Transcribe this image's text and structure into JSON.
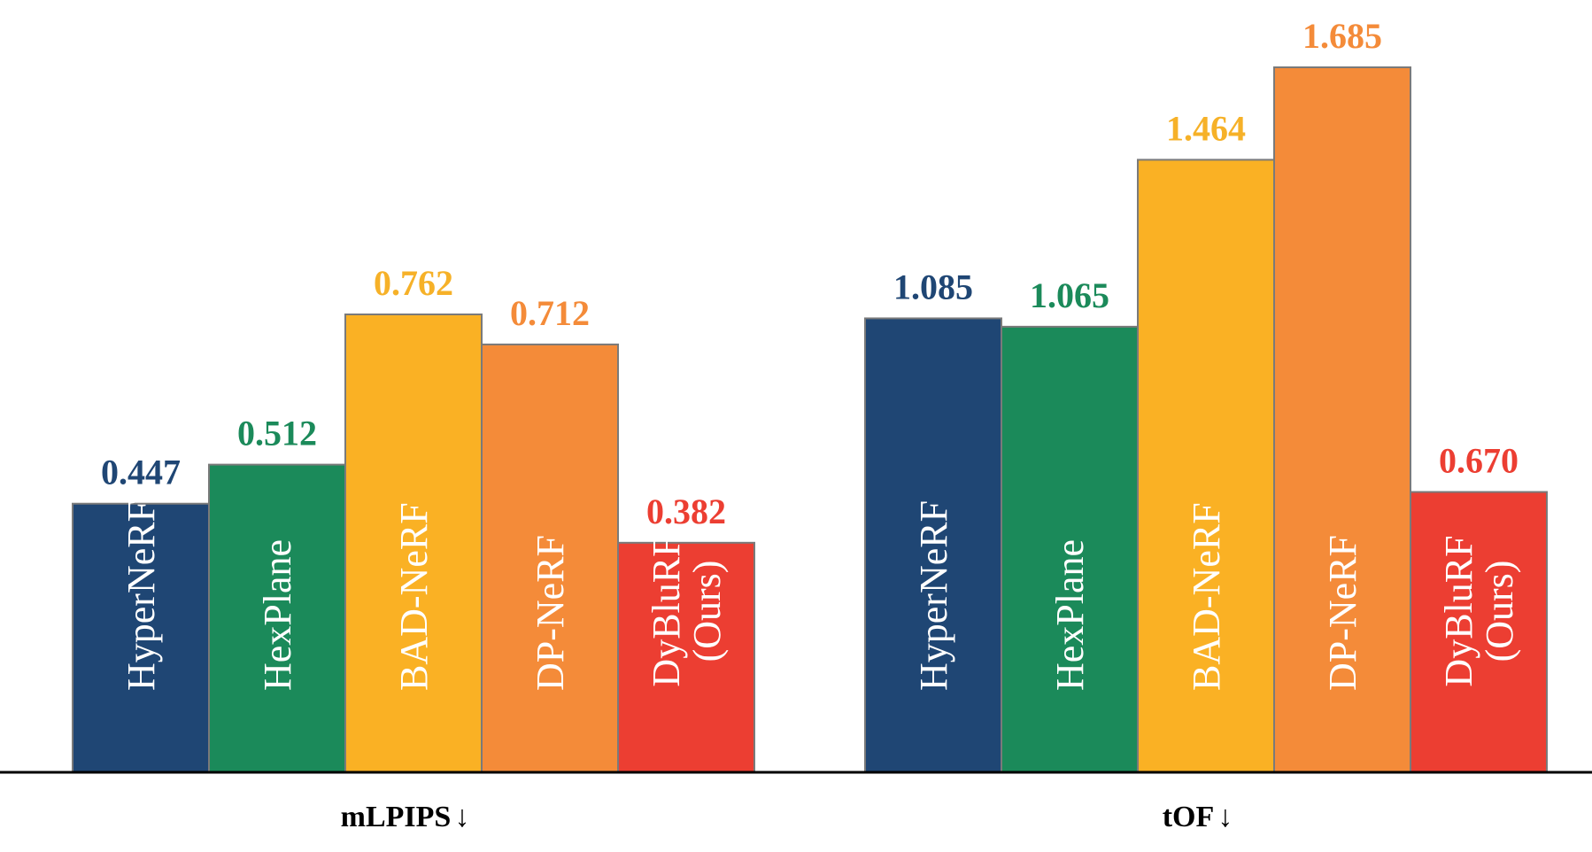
{
  "chart_data": {
    "type": "bar",
    "groups": [
      {
        "label": "mLPIPS",
        "arrow": "↓",
        "bars": [
          {
            "name": "HyperNeRF",
            "value": 0.447,
            "display": "0.447",
            "color": "#1f4674",
            "text_color": "#1f4674"
          },
          {
            "name": "HexPlane",
            "value": 0.512,
            "display": "0.512",
            "color": "#1b8a5a",
            "text_color": "#1b8a5a"
          },
          {
            "name": "BAD-NeRF",
            "value": 0.762,
            "display": "0.762",
            "color": "#fab124",
            "text_color": "#f6b128"
          },
          {
            "name": "DP-NeRF",
            "value": 0.712,
            "display": "0.712",
            "color": "#f48b39",
            "text_color": "#f48b39"
          },
          {
            "name": "DyBluRF (Ours)",
            "value": 0.382,
            "display": "0.382",
            "color": "#ec3e32",
            "text_color": "#ec3e32"
          }
        ]
      },
      {
        "label": "tOF",
        "arrow": "↓",
        "bars": [
          {
            "name": "HyperNeRF",
            "value": 1.085,
            "display": "1.085",
            "color": "#1f4674",
            "text_color": "#1f4674"
          },
          {
            "name": "HexPlane",
            "value": 1.065,
            "display": "1.065",
            "color": "#1b8a5a",
            "text_color": "#1b8a5a"
          },
          {
            "name": "BAD-NeRF",
            "value": 1.464,
            "display": "1.464",
            "color": "#fab124",
            "text_color": "#f6b128"
          },
          {
            "name": "DP-NeRF",
            "value": 1.685,
            "display": "1.685",
            "color": "#f48b39",
            "text_color": "#f48b39"
          },
          {
            "name": "DyBluRF (Ours)",
            "value": 0.67,
            "display": "0.670",
            "color": "#ec3e32",
            "text_color": "#ec3e32"
          }
        ]
      }
    ],
    "axes": {
      "x_axis_line": true,
      "y_axis": false,
      "grid": false,
      "legend": false
    },
    "colors": {
      "axis": "#000000",
      "bar_border": "#7a7a7a"
    }
  }
}
